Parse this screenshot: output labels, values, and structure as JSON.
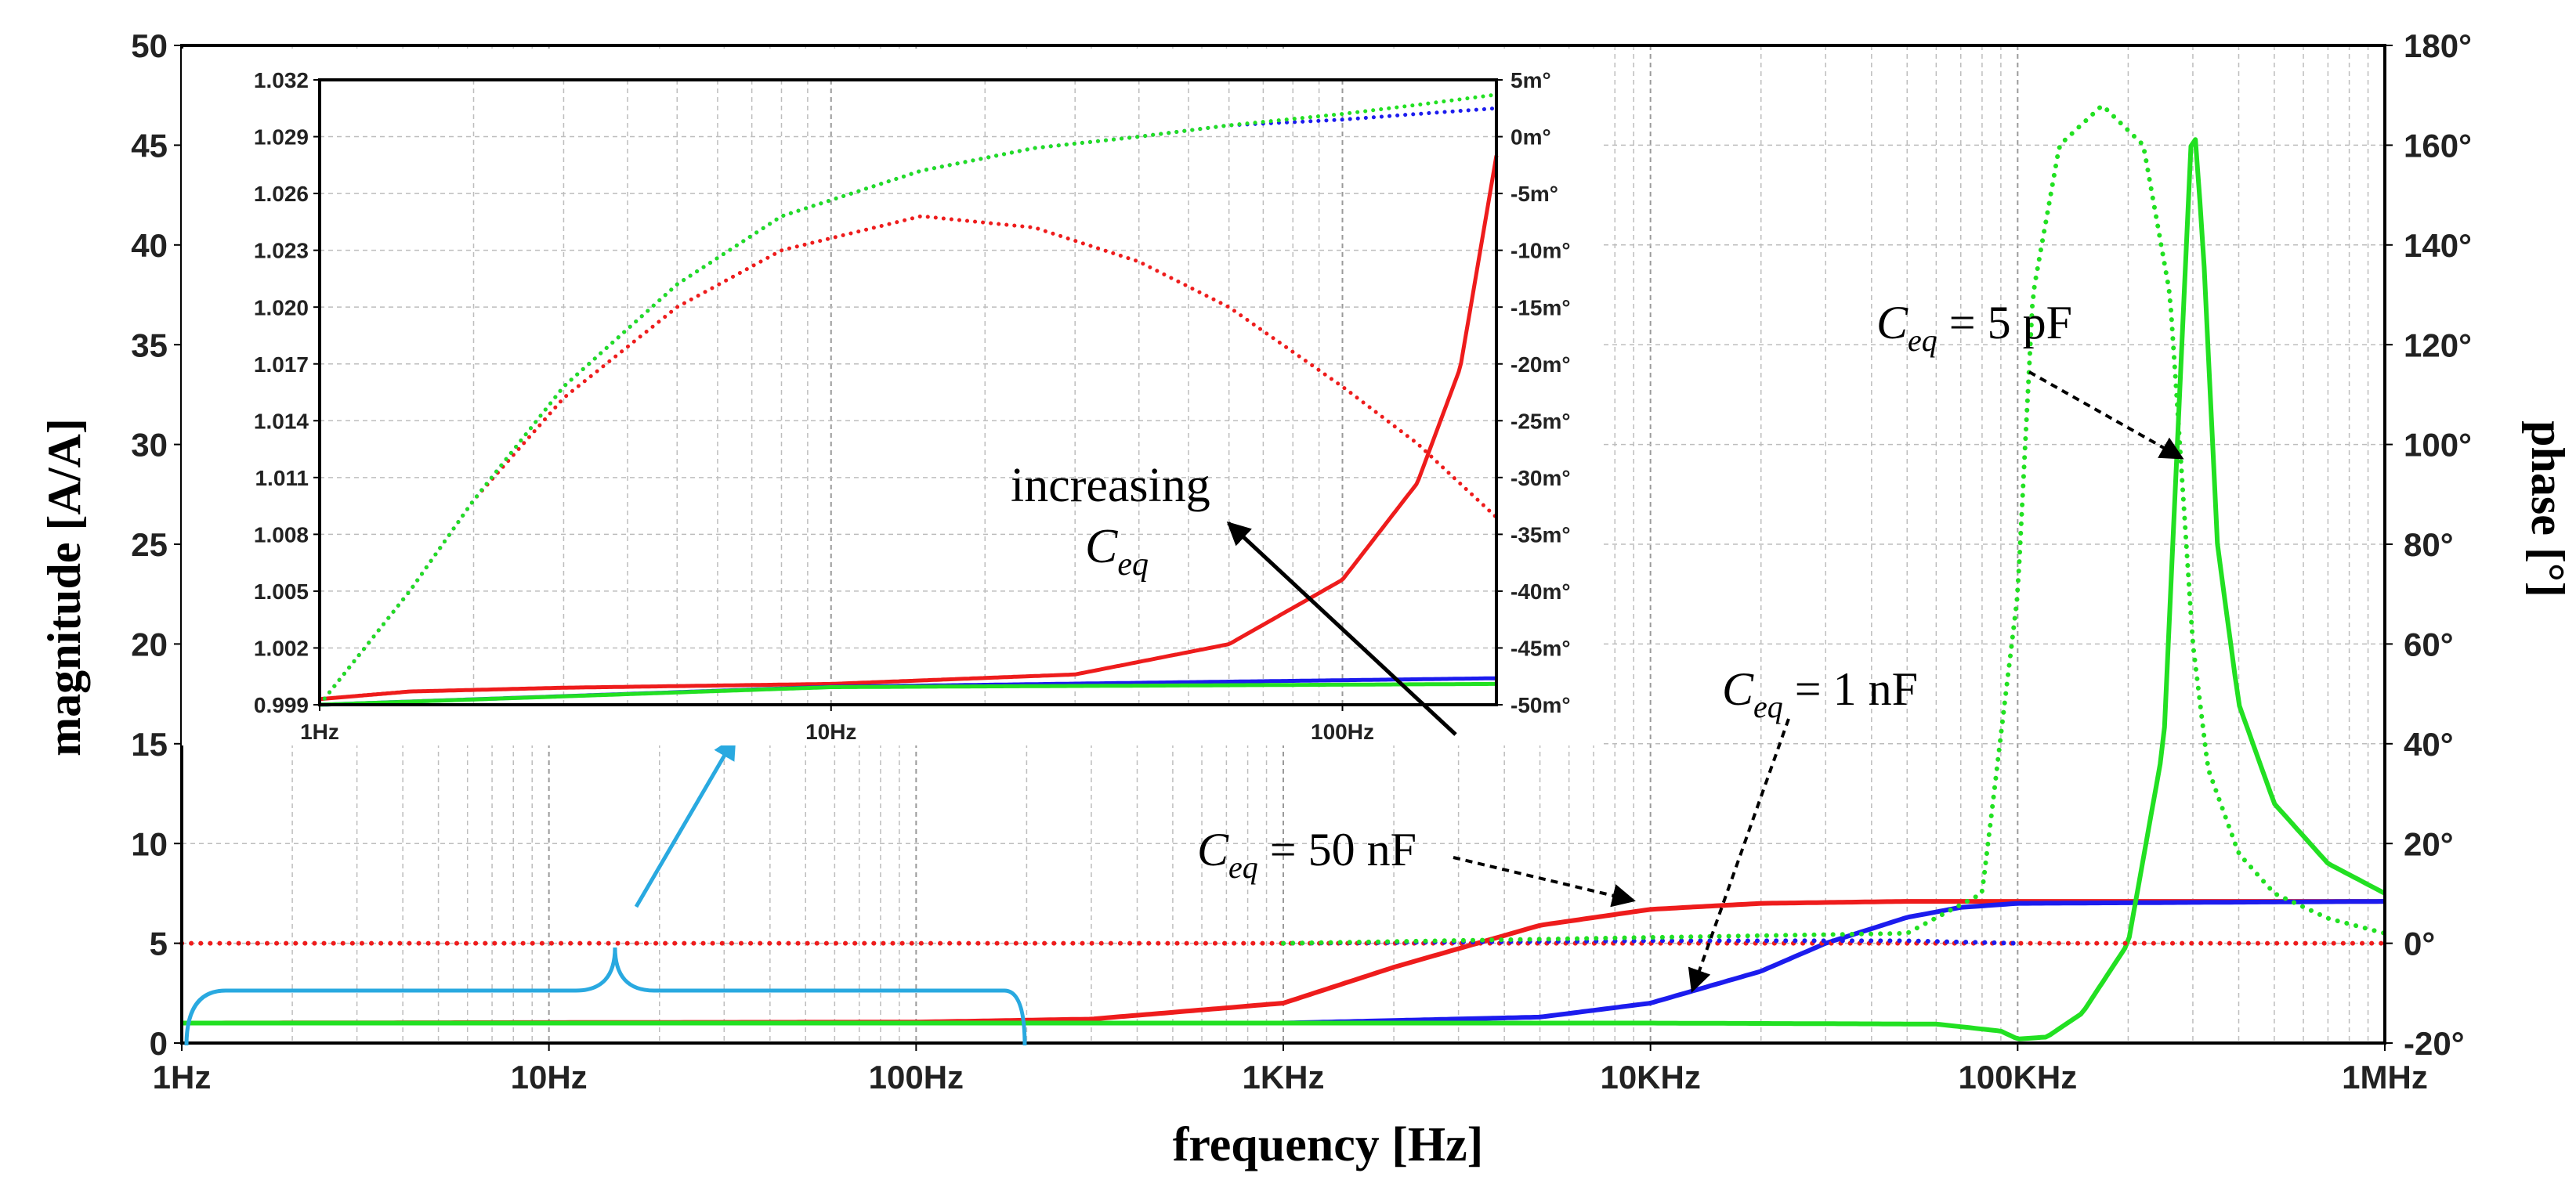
{
  "chart_data": [
    {
      "id": "main",
      "type": "line",
      "xscale": "log",
      "xlim": [
        1,
        1000000
      ],
      "xlabel": "frequency [Hz]",
      "ylabel": "magnitude [A/A]",
      "y2label": "phase [°]",
      "ylim": [
        0,
        50
      ],
      "y2lim": [
        -20,
        180
      ],
      "x_ticks": [
        {
          "v": 1,
          "label": "1Hz"
        },
        {
          "v": 10,
          "label": "10Hz"
        },
        {
          "v": 100,
          "label": "100Hz"
        },
        {
          "v": 1000,
          "label": "1KHz"
        },
        {
          "v": 10000,
          "label": "10KHz"
        },
        {
          "v": 100000,
          "label": "100KHz"
        },
        {
          "v": 1000000,
          "label": "1MHz"
        }
      ],
      "y_ticks": [
        "0",
        "5",
        "10",
        "15",
        "20",
        "25",
        "30",
        "35",
        "40",
        "45",
        "50"
      ],
      "y2_ticks": [
        "-20°",
        "0°",
        "20°",
        "40°",
        "60°",
        "80°",
        "100°",
        "120°",
        "140°",
        "160°",
        "180°"
      ],
      "series": [
        {
          "name": "Ceq = 50 nF magnitude",
          "axis": "left",
          "style": "solid",
          "color": "#ee1c1c",
          "x": [
            1,
            100,
            300,
            1000,
            2000,
            5000,
            10000,
            20000,
            50000,
            1000000
          ],
          "y": [
            1,
            1.05,
            1.2,
            2,
            3.8,
            5.9,
            6.7,
            7.0,
            7.1,
            7.1
          ]
        },
        {
          "name": "Ceq = 1 nF magnitude",
          "axis": "left",
          "style": "solid",
          "color": "#1c1cee",
          "x": [
            1,
            1000,
            5000,
            10000,
            20000,
            30000,
            50000,
            70000,
            100000,
            1000000
          ],
          "y": [
            1,
            1.0,
            1.3,
            2.0,
            3.6,
            5.0,
            6.3,
            6.8,
            7.0,
            7.1
          ]
        },
        {
          "name": "Ceq = 5 pF magnitude",
          "axis": "left",
          "style": "solid",
          "color": "#22e022",
          "x": [
            1,
            10000,
            60000,
            90000,
            100000,
            120000,
            150000,
            200000,
            250000,
            280000,
            300000,
            320000,
            350000,
            400000,
            500000,
            700000,
            1000000
          ],
          "y": [
            1,
            1.0,
            0.95,
            0.6,
            0.2,
            0.3,
            1.5,
            5.0,
            15,
            35,
            47,
            40,
            25,
            17,
            12,
            9,
            7.5
          ]
        },
        {
          "name": "Ceq = 50 nF phase",
          "axis": "right",
          "style": "dotted",
          "color": "#ee1c1c",
          "x": [
            1,
            1000,
            20000,
            100000,
            1000000
          ],
          "y": [
            0,
            0,
            0,
            0,
            0
          ]
        },
        {
          "name": "Ceq = 1 nF phase",
          "axis": "right",
          "style": "dotted",
          "color": "#1c1cee",
          "x": [
            1000,
            10000,
            50000,
            100000
          ],
          "y": [
            0,
            0.5,
            0.5,
            0
          ]
        },
        {
          "name": "Ceq = 5 pF phase",
          "axis": "right",
          "style": "dotted",
          "color": "#22e022",
          "x": [
            1000,
            50000,
            80000,
            100000,
            110000,
            130000,
            170000,
            220000,
            260000,
            300000,
            330000,
            400000,
            500000,
            700000,
            1000000
          ],
          "y": [
            0,
            2,
            10,
            70,
            130,
            160,
            168,
            160,
            130,
            60,
            35,
            18,
            10,
            5,
            2
          ]
        }
      ],
      "annotations": [
        {
          "sym": "C",
          "sub": "eq",
          "rest": " = 5 pF"
        },
        {
          "sym": "C",
          "sub": "eq",
          "rest": " = 1 nF"
        },
        {
          "sym": "C",
          "sub": "eq",
          "rest": " = 50 nF"
        }
      ]
    },
    {
      "id": "inset",
      "type": "line",
      "xscale": "log",
      "xlim": [
        1,
        200
      ],
      "ylim": [
        0.999,
        1.032
      ],
      "y2lim": [
        -50,
        5
      ],
      "x_ticks": [
        {
          "v": 1,
          "label": "1Hz"
        },
        {
          "v": 10,
          "label": "10Hz"
        },
        {
          "v": 100,
          "label": "100Hz"
        }
      ],
      "y_ticks": [
        "0.999",
        "1.002",
        "1.005",
        "1.008",
        "1.011",
        "1.014",
        "1.017",
        "1.020",
        "1.023",
        "1.026",
        "1.029",
        "1.032"
      ],
      "y2_ticks": [
        "-50m°",
        "-45m°",
        "-40m°",
        "-35m°",
        "-30m°",
        "-25m°",
        "-20m°",
        "-15m°",
        "-10m°",
        "-5m°",
        "0m°",
        "5m°"
      ],
      "series": [
        {
          "name": "Ceq = 50 nF magnitude",
          "axis": "left",
          "style": "solid",
          "color": "#ee1c1c",
          "x": [
            1,
            1.5,
            3,
            10,
            30,
            60,
            100,
            140,
            170,
            200
          ],
          "y": [
            0.9993,
            0.9997,
            0.9999,
            1.0001,
            1.0006,
            1.0022,
            1.0056,
            1.0107,
            1.0168,
            1.028
          ]
        },
        {
          "name": "Ceq = 1 nF magnitude",
          "axis": "left",
          "style": "solid",
          "color": "#1c1cee",
          "x": [
            1,
            10,
            200
          ],
          "y": [
            0.999,
            0.99995,
            1.0004
          ]
        },
        {
          "name": "Ceq = 5 pF magnitude",
          "axis": "left",
          "style": "solid",
          "color": "#22e022",
          "x": [
            1,
            10,
            200
          ],
          "y": [
            0.999,
            0.99993,
            1.0001
          ]
        },
        {
          "name": "Ceq = 50 nF phase",
          "axis": "right",
          "style": "dotted",
          "color": "#ee1c1c",
          "x": [
            1,
            1.5,
            2,
            3,
            5,
            8,
            15,
            25,
            40,
            60,
            100,
            140,
            200
          ],
          "y": [
            -50,
            -40,
            -32,
            -23,
            -15,
            -10,
            -7,
            -8,
            -11,
            -15,
            -22,
            -27,
            -33.5
          ]
        },
        {
          "name": "Ceq = 1 nF phase",
          "axis": "right",
          "style": "dotted",
          "color": "#1c1cee",
          "x": [
            1,
            1.5,
            2,
            3,
            5,
            8,
            15,
            25,
            40,
            60,
            100,
            140,
            200
          ],
          "y": [
            -50,
            -40,
            -32,
            -22,
            -13,
            -7,
            -3,
            -1,
            0,
            1,
            1.5,
            2,
            2.5
          ]
        },
        {
          "name": "Ceq = 5 pF phase",
          "axis": "right",
          "style": "dotted",
          "color": "#22e022",
          "x": [
            1,
            1.5,
            2,
            3,
            5,
            8,
            15,
            25,
            40,
            60,
            100,
            140,
            200
          ],
          "y": [
            -50,
            -40,
            -32,
            -22,
            -13,
            -7,
            -3,
            -1,
            0,
            1,
            2,
            2.8,
            3.7
          ]
        }
      ],
      "annotations": [
        {
          "text": "increasing"
        },
        {
          "sym": "C",
          "sub": "eq"
        }
      ]
    }
  ]
}
